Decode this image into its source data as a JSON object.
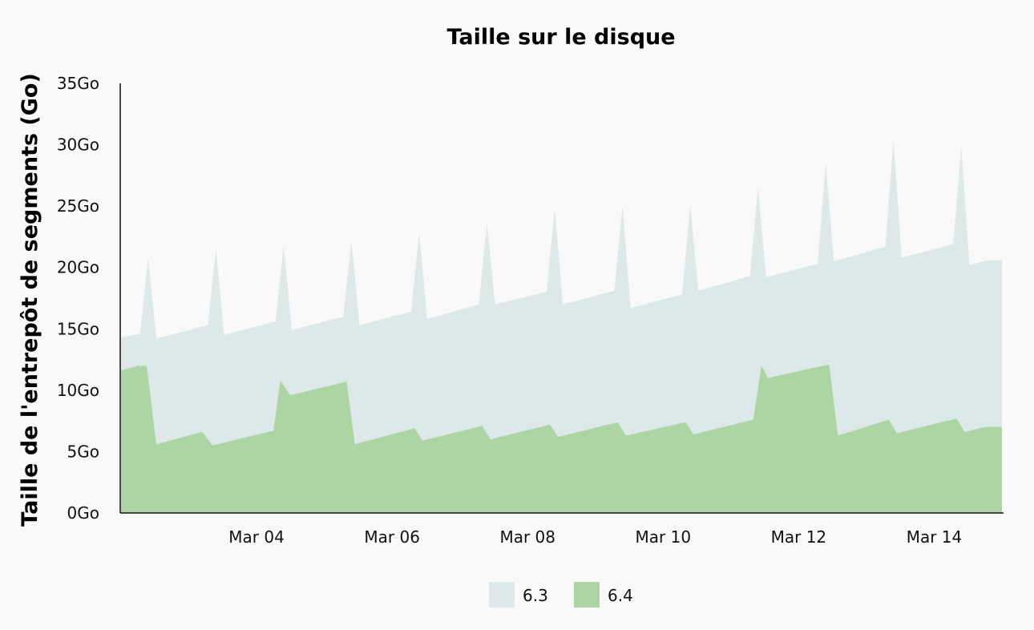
{
  "chart_data": {
    "type": "area",
    "title": "Taille sur le disque",
    "xlabel": "",
    "ylabel": "Taille de l'entrepôt de segments (Go)",
    "xlim": [
      2.0,
      15.0
    ],
    "ylim": [
      0,
      35
    ],
    "y_ticks": [
      {
        "value": 0,
        "label": "0Go"
      },
      {
        "value": 5,
        "label": "5Go"
      },
      {
        "value": 10,
        "label": "10Go"
      },
      {
        "value": 15,
        "label": "15Go"
      },
      {
        "value": 20,
        "label": "20Go"
      },
      {
        "value": 25,
        "label": "25Go"
      },
      {
        "value": 30,
        "label": "30Go"
      },
      {
        "value": 35,
        "label": "35Go"
      }
    ],
    "x_ticks": [
      {
        "value": 4,
        "label": "Mar 04"
      },
      {
        "value": 6,
        "label": "Mar 06"
      },
      {
        "value": 8,
        "label": "Mar 08"
      },
      {
        "value": 10,
        "label": "Mar 10"
      },
      {
        "value": 12,
        "label": "Mar 12"
      },
      {
        "value": 14,
        "label": "Mar 14"
      }
    ],
    "legend_position": "bottom",
    "grid": false,
    "series": [
      {
        "name": "6.3",
        "color": "#dce9e8",
        "points": [
          [
            2.0,
            14.3
          ],
          [
            2.28,
            14.6
          ],
          [
            2.4,
            20.8
          ],
          [
            2.52,
            14.2
          ],
          [
            3.28,
            15.3
          ],
          [
            3.4,
            21.5
          ],
          [
            3.52,
            14.5
          ],
          [
            4.28,
            15.6
          ],
          [
            4.4,
            21.8
          ],
          [
            4.52,
            14.9
          ],
          [
            5.28,
            16.0
          ],
          [
            5.4,
            22.2
          ],
          [
            5.52,
            15.3
          ],
          [
            6.28,
            16.4
          ],
          [
            6.4,
            22.8
          ],
          [
            6.52,
            15.8
          ],
          [
            7.28,
            17.0
          ],
          [
            7.4,
            23.6
          ],
          [
            7.52,
            17.0
          ],
          [
            8.28,
            18.0
          ],
          [
            8.4,
            24.8
          ],
          [
            8.52,
            17.0
          ],
          [
            9.28,
            18.1
          ],
          [
            9.4,
            25.0
          ],
          [
            9.52,
            16.7
          ],
          [
            10.28,
            17.8
          ],
          [
            10.4,
            25.1
          ],
          [
            10.52,
            18.1
          ],
          [
            11.28,
            19.3
          ],
          [
            11.4,
            26.5
          ],
          [
            11.52,
            19.2
          ],
          [
            12.28,
            20.3
          ],
          [
            12.4,
            28.6
          ],
          [
            12.52,
            20.5
          ],
          [
            13.28,
            21.7
          ],
          [
            13.4,
            30.4
          ],
          [
            13.52,
            20.8
          ],
          [
            14.28,
            21.9
          ],
          [
            14.4,
            29.8
          ],
          [
            14.52,
            20.2
          ],
          [
            14.8,
            20.6
          ],
          [
            15.0,
            20.6
          ]
        ]
      },
      {
        "name": "6.4",
        "color": "#add5a4",
        "points": [
          [
            2.0,
            11.6
          ],
          [
            2.25,
            12.0
          ],
          [
            2.38,
            12.0
          ],
          [
            2.52,
            5.6
          ],
          [
            3.2,
            6.6
          ],
          [
            3.35,
            5.5
          ],
          [
            4.25,
            6.7
          ],
          [
            4.35,
            10.8
          ],
          [
            4.5,
            9.6
          ],
          [
            5.33,
            10.7
          ],
          [
            5.45,
            5.6
          ],
          [
            6.33,
            6.9
          ],
          [
            6.45,
            5.9
          ],
          [
            7.33,
            7.1
          ],
          [
            7.45,
            6.0
          ],
          [
            8.33,
            7.2
          ],
          [
            8.45,
            6.2
          ],
          [
            9.33,
            7.4
          ],
          [
            9.45,
            6.3
          ],
          [
            10.33,
            7.4
          ],
          [
            10.45,
            6.4
          ],
          [
            11.33,
            7.6
          ],
          [
            11.45,
            12.0
          ],
          [
            11.55,
            11.0
          ],
          [
            12.45,
            12.1
          ],
          [
            12.58,
            6.3
          ],
          [
            13.33,
            7.6
          ],
          [
            13.45,
            6.5
          ],
          [
            14.33,
            7.7
          ],
          [
            14.45,
            6.6
          ],
          [
            14.75,
            7.0
          ],
          [
            15.0,
            7.0
          ]
        ]
      }
    ]
  }
}
